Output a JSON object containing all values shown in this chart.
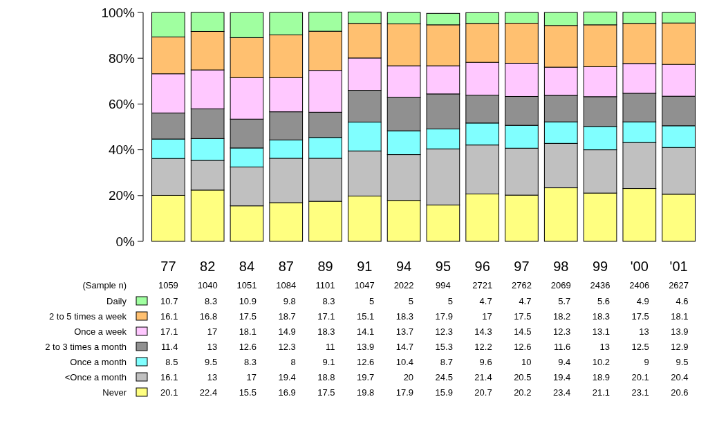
{
  "chart_data": {
    "type": "bar",
    "stacked": true,
    "data_labels": true,
    "legend": "bottom",
    "categories": [
      "77",
      "82",
      "84",
      "87",
      "89",
      "91",
      "94",
      "95",
      "96",
      "97",
      "98",
      "99",
      "'00",
      "'01"
    ],
    "ylim": [
      0,
      100
    ],
    "yticks": [
      {
        "value": 0,
        "label": "0%"
      },
      {
        "value": 20,
        "label": "20%"
      },
      {
        "value": 40,
        "label": "40%"
      },
      {
        "value": 60,
        "label": "60%"
      },
      {
        "value": 80,
        "label": "80%"
      },
      {
        "value": 100,
        "label": "100%"
      }
    ],
    "annotations": [
      "(Sample n)",
      "1059",
      "1040",
      "1051",
      "1084",
      "1101",
      "1047",
      "2022",
      "994",
      "2721",
      "2762",
      "2069",
      "2436",
      "2406",
      "2627"
    ],
    "series": [
      {
        "name": "Never",
        "color": "#ffff80",
        "values": [
          20.1,
          22.4,
          15.5,
          16.9,
          17.5,
          19.8,
          17.9,
          15.9,
          20.7,
          20.2,
          23.4,
          21.1,
          23.1,
          20.6
        ]
      },
      {
        "name": "<Once a month",
        "color": "#c0c0c0",
        "values": [
          16.1,
          13,
          17,
          19.4,
          18.8,
          19.7,
          20,
          24.5,
          21.4,
          20.5,
          19.4,
          18.9,
          20.1,
          20.4
        ]
      },
      {
        "name": "Once a month",
        "color": "#80ffff",
        "values": [
          8.5,
          9.5,
          8.3,
          8,
          9.1,
          12.6,
          10.4,
          8.7,
          9.6,
          10,
          9.4,
          10.2,
          9,
          9.5
        ]
      },
      {
        "name": "2 to 3 times a month",
        "color": "#909090",
        "values": [
          11.4,
          13,
          12.6,
          12.3,
          11,
          13.9,
          14.7,
          15.3,
          12.2,
          12.6,
          11.6,
          13,
          12.5,
          12.9
        ]
      },
      {
        "name": "Once a week",
        "color": "#ffc8ff",
        "values": [
          17.1,
          17,
          18.1,
          14.9,
          18.3,
          14.1,
          13.7,
          12.3,
          14.3,
          14.5,
          12.3,
          13.1,
          13,
          13.9
        ]
      },
      {
        "name": "2 to 5 times a week",
        "color": "#ffc070",
        "values": [
          16.1,
          16.8,
          17.5,
          18.7,
          17.1,
          15.1,
          18.3,
          17.9,
          17,
          17.5,
          18.2,
          18.3,
          17.5,
          18.1
        ]
      },
      {
        "name": "Daily",
        "color": "#a0ffa0",
        "values": [
          10.7,
          8.3,
          10.9,
          9.8,
          8.3,
          5,
          5,
          5,
          4.7,
          4.7,
          5.7,
          5.6,
          4.9,
          4.6
        ]
      }
    ]
  }
}
